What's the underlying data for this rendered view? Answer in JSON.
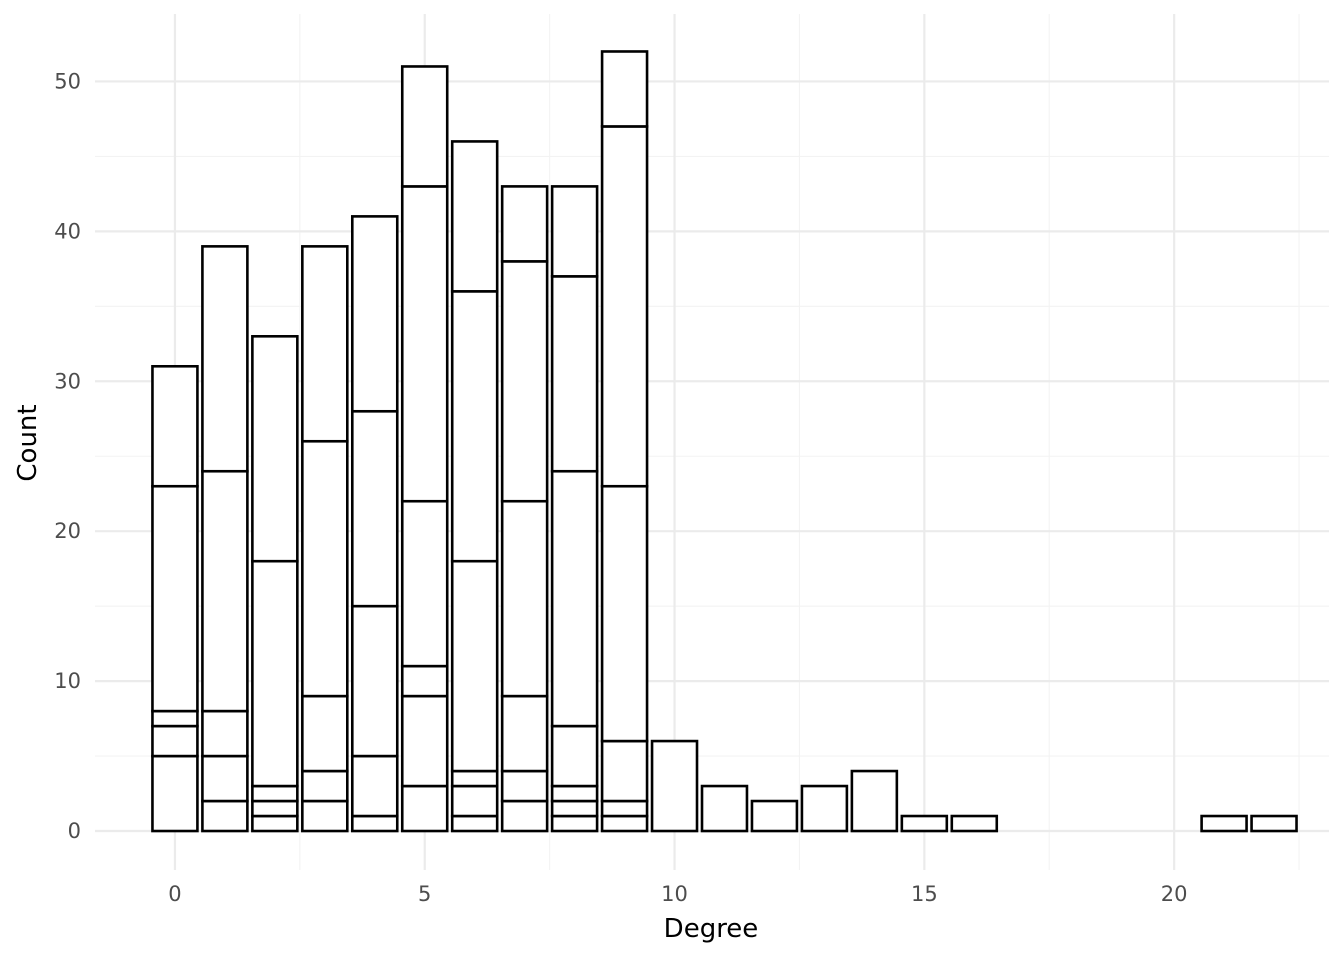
{
  "chart_data": {
    "type": "bar",
    "stacked": true,
    "title": "",
    "xlabel": "Degree",
    "ylabel": "Count",
    "xlim": [
      -1.6,
      23.1
    ],
    "ylim": [
      -2.6,
      54.5
    ],
    "x_ticks": [
      0,
      5,
      10,
      15,
      20
    ],
    "y_ticks": [
      0,
      10,
      20,
      30,
      40,
      50
    ],
    "x_minor": [
      2.5,
      7.5,
      12.5,
      17.5,
      22.5
    ],
    "y_minor": [
      5,
      15,
      25,
      35,
      45
    ],
    "x_tick_labels": [
      "0",
      "5",
      "10",
      "15",
      "20"
    ],
    "y_tick_labels": [
      "0",
      "10",
      "20",
      "30",
      "40",
      "50"
    ],
    "fill_color": "#ffffff",
    "outline_color": "#000000",
    "grid": true,
    "legend": "none",
    "bars": [
      {
        "x": 0,
        "boundaries": [
          5,
          7,
          8,
          23,
          31
        ]
      },
      {
        "x": 1,
        "boundaries": [
          2,
          5,
          8,
          24,
          39
        ]
      },
      {
        "x": 2,
        "boundaries": [
          1,
          2,
          3,
          18,
          33
        ]
      },
      {
        "x": 3,
        "boundaries": [
          2,
          4,
          9,
          26,
          39
        ]
      },
      {
        "x": 4,
        "boundaries": [
          1,
          5,
          15,
          28,
          41
        ]
      },
      {
        "x": 5,
        "boundaries": [
          3,
          9,
          11,
          22,
          43,
          51
        ]
      },
      {
        "x": 6,
        "boundaries": [
          1,
          3,
          4,
          18,
          36,
          46
        ]
      },
      {
        "x": 7,
        "boundaries": [
          2,
          4,
          9,
          22,
          38,
          43
        ]
      },
      {
        "x": 8,
        "boundaries": [
          1,
          2,
          3,
          7,
          24,
          37,
          43
        ]
      },
      {
        "x": 9,
        "boundaries": [
          1,
          2,
          6,
          23,
          47,
          52
        ]
      },
      {
        "x": 10,
        "boundaries": [
          6
        ]
      },
      {
        "x": 11,
        "boundaries": [
          3
        ]
      },
      {
        "x": 12,
        "boundaries": [
          2
        ]
      },
      {
        "x": 13,
        "boundaries": [
          3
        ]
      },
      {
        "x": 14,
        "boundaries": [
          4
        ]
      },
      {
        "x": 15,
        "boundaries": [
          1
        ]
      },
      {
        "x": 16,
        "boundaries": [
          1
        ]
      },
      {
        "x": 21,
        "boundaries": [
          1
        ]
      },
      {
        "x": 22,
        "boundaries": [
          1
        ]
      }
    ]
  }
}
